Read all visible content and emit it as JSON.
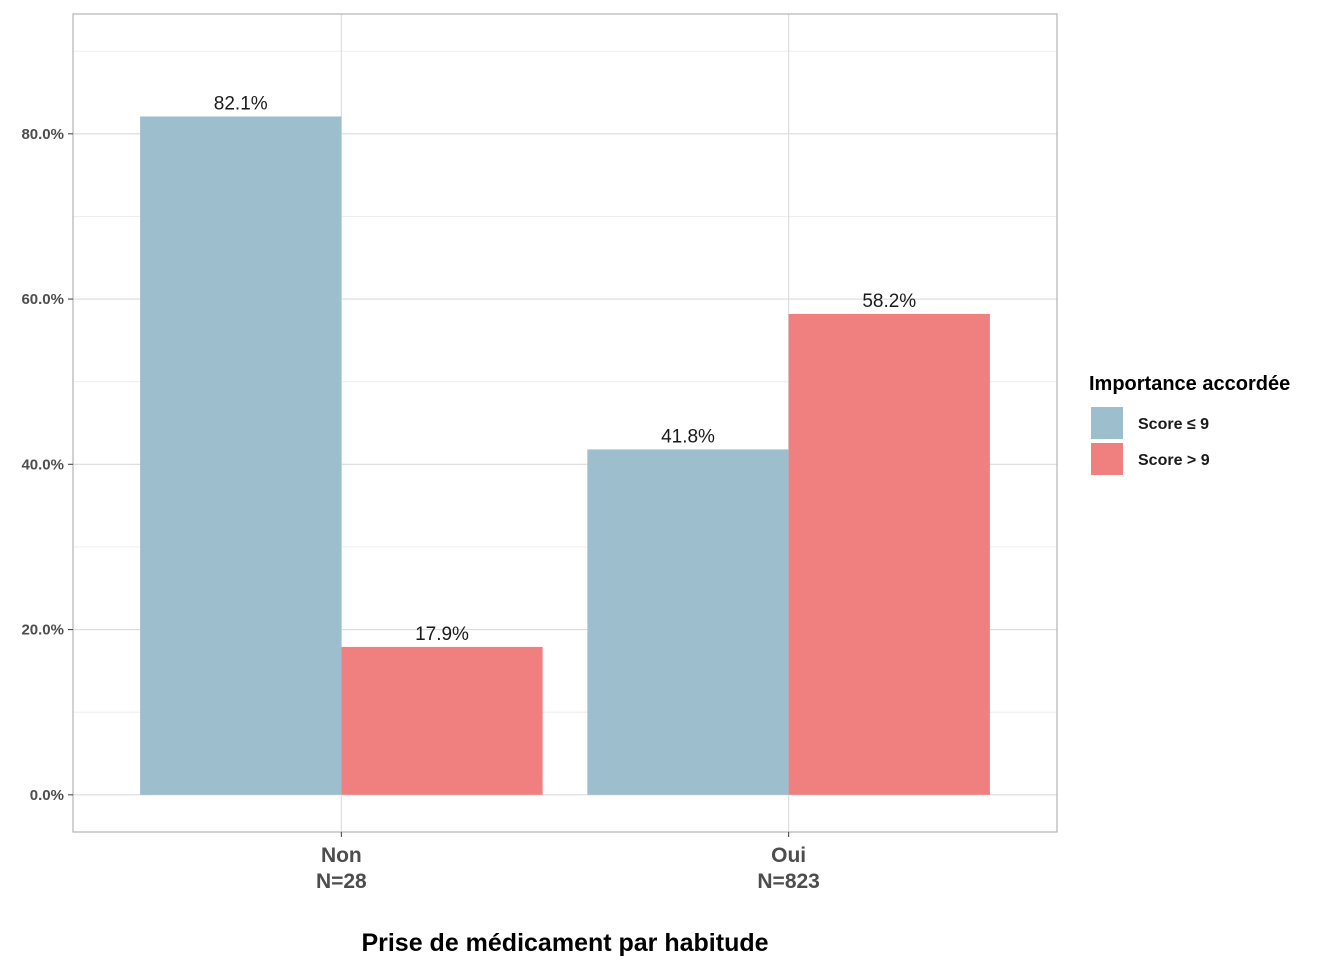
{
  "chart_data": {
    "type": "bar",
    "categories": [
      "Non",
      "Oui"
    ],
    "category_counts": [
      "N=28",
      "N=823"
    ],
    "series": [
      {
        "name": "Score ≤ 9",
        "values": [
          82.1,
          41.8
        ],
        "labels": [
          "82.1%",
          "41.8%"
        ],
        "color": "#9dbfcd"
      },
      {
        "name": "Score > 9",
        "values": [
          17.9,
          58.2
        ],
        "labels": [
          "17.9%",
          "58.2%"
        ],
        "color": "#f08080"
      }
    ],
    "xlabel": "Prise de médicament par habitude",
    "ylabel": "",
    "ylim": [
      -4.5,
      94.5
    ],
    "yticks": [
      0,
      20,
      40,
      60,
      80
    ],
    "ytick_labels": [
      "0.0%",
      "20.0%",
      "40.0%",
      "60.0%",
      "80.0%"
    ],
    "grid": true,
    "legend_title": "Importance accordée",
    "legend_position": "right"
  }
}
